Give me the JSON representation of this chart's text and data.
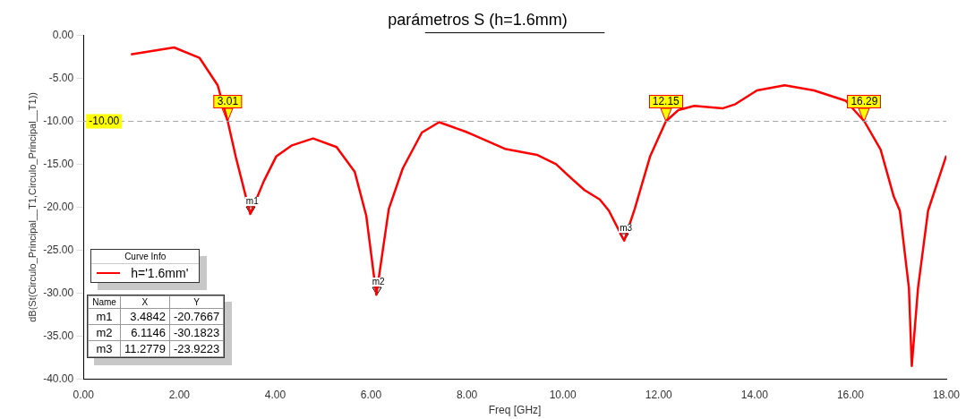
{
  "chart_data": {
    "type": "line",
    "title": "parámetros S (h=1.6mm)",
    "xlabel": "Freq [GHz]",
    "ylabel": "dB(St(Circulo_Principal__T1,Circulo_Principal__T1))",
    "legend_title": "Curve Info",
    "legend": "bottom left",
    "marker": "none",
    "line_style": "solid",
    "grid": false,
    "xlim": [
      0,
      18
    ],
    "xticks": [
      {
        "value": 0,
        "label": "0.00"
      },
      {
        "value": 2,
        "label": "2.00"
      },
      {
        "value": 4,
        "label": "4.00"
      },
      {
        "value": 6,
        "label": "6.00"
      },
      {
        "value": 8,
        "label": "8.00"
      },
      {
        "value": 10,
        "label": "10.00"
      },
      {
        "value": 12,
        "label": "12.00"
      },
      {
        "value": 14,
        "label": "14.00"
      },
      {
        "value": 16,
        "label": "16.00"
      },
      {
        "value": 18,
        "label": "18.00"
      }
    ],
    "ylim": [
      -40,
      0
    ],
    "yticks": [
      {
        "value": 0,
        "label": "0.00"
      },
      {
        "value": -5,
        "label": "-5.00"
      },
      {
        "value": -10,
        "label": "-10.00"
      },
      {
        "value": -15,
        "label": "-15.00"
      },
      {
        "value": -20,
        "label": "-20.00"
      },
      {
        "value": -25,
        "label": "-25.00"
      },
      {
        "value": -30,
        "label": "-30.00"
      },
      {
        "value": -35,
        "label": "-35.00"
      },
      {
        "value": -40,
        "label": "-40.00"
      }
    ],
    "ref_lines": [
      {
        "axis": "y",
        "value": -10,
        "label": "-10.00",
        "color": "#a6a6a6",
        "line_style": "dashed"
      }
    ],
    "series": [
      {
        "name": "h='1.6mm'",
        "color": "#ff0000",
        "x": [
          0.99,
          1.89,
          2.42,
          2.8,
          3.01,
          3.18,
          3.48,
          3.76,
          4.02,
          4.35,
          4.79,
          5.28,
          5.66,
          5.9,
          6.11,
          6.37,
          6.66,
          7.06,
          7.42,
          7.97,
          8.14,
          8.79,
          9.46,
          9.86,
          10.11,
          10.45,
          10.77,
          10.96,
          11.28,
          11.5,
          11.82,
          12.15,
          12.41,
          12.74,
          13.33,
          13.6,
          14.05,
          14.63,
          15.24,
          15.9,
          16.29,
          16.63,
          16.9,
          17.03,
          17.22,
          17.28,
          17.41,
          17.62,
          18.0
        ],
        "values": [
          -2.2,
          -1.4,
          -2.6,
          -5.8,
          -10,
          -14.2,
          -20.8,
          -17,
          -14.1,
          -12.8,
          -12,
          -13,
          -15.9,
          -21,
          -30.2,
          -20.2,
          -15.5,
          -11.3,
          -10.1,
          -11.2,
          -11.6,
          -13.2,
          -13.9,
          -15,
          -16.3,
          -18,
          -19.1,
          -20.4,
          -23.9,
          -20.2,
          -14.1,
          -10,
          -8.7,
          -8.2,
          -8.5,
          -8,
          -6.4,
          -5.8,
          -6.4,
          -7.6,
          -10,
          -13.3,
          -18.7,
          -20.4,
          -29.4,
          -38.5,
          -29.4,
          -20.4,
          -14
        ]
      }
    ],
    "annotations": [
      "Name",
      "X",
      "Y",
      "m1",
      "3.4842",
      "-20.7667",
      "m2",
      "6.1146",
      "-30.1823",
      "m3",
      "11.2779",
      "-23.9223",
      {
        "text": "m1",
        "x": 3.4842,
        "y": -20.7667
      },
      {
        "text": "m2",
        "x": 6.1146,
        "y": -30.1823
      },
      {
        "text": "m3",
        "x": 11.2779,
        "y": -23.9223
      },
      {
        "text": "3.01",
        "x": 3.01,
        "y": -10
      },
      {
        "text": "12.15",
        "x": 12.15,
        "y": -10
      },
      {
        "text": "16.29",
        "x": 16.29,
        "y": -10
      }
    ]
  }
}
